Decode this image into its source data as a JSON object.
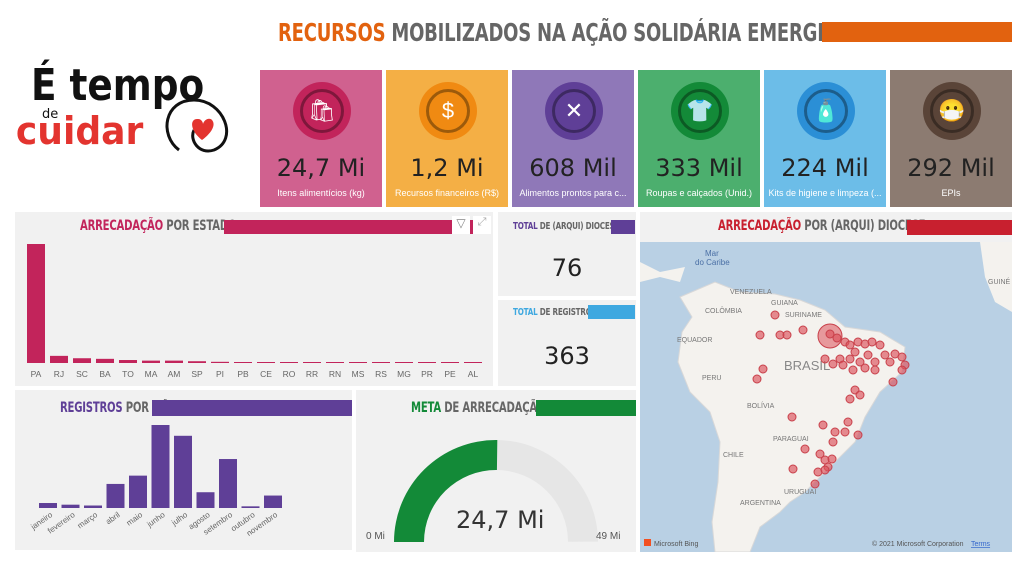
{
  "header": {
    "title_accent": "RECURSOS",
    "title_rest": " MOBILIZADOS NA AÇÃO SOLIDÁRIA EMERGENCIAL",
    "accent_color": "#e2620f"
  },
  "logo": {
    "line1": "É tempo",
    "line2": "de",
    "line3": "cuidar"
  },
  "cards": [
    {
      "value": "24,7 Mi",
      "label": "Itens alimentícios (kg)",
      "icon": "grocery-bag-icon",
      "bg": "#d0618f",
      "circle": "#c2245b"
    },
    {
      "value": "1,2 Mi",
      "label": "Recursos financeiros (R$)",
      "icon": "money-bag-icon",
      "bg": "#f4af45",
      "circle": "#f08a12"
    },
    {
      "value": "608 Mil",
      "label": "Alimentos prontos para c...",
      "icon": "fork-knife-icon",
      "bg": "#8f78b8",
      "circle": "#5f3f97"
    },
    {
      "value": "333 Mil",
      "label": "Roupas e calçados (Unid.)",
      "icon": "shirt-icon",
      "bg": "#4caf6e",
      "circle": "#138a38"
    },
    {
      "value": "224 Mil",
      "label": "Kits de higiene e limpeza (...",
      "icon": "soap-bottle-icon",
      "bg": "#6cbde8",
      "circle": "#2b8fd6"
    },
    {
      "value": "292 Mil",
      "label": "EPIs",
      "icon": "face-mask-icon",
      "bg": "#8c7b71",
      "circle": "#5a4438"
    }
  ],
  "totals": {
    "dioceses": {
      "accent": "TOTAL",
      "rest": " DE (ARQUI) DIOCESES",
      "value": "76",
      "color": "#5f3f97"
    },
    "registros": {
      "accent": "TOTAL",
      "rest": " DE REGISTROS",
      "value": "363",
      "color": "#3ea8e0"
    }
  },
  "map": {
    "title_accent": "ARRECADAÇÃO",
    "title_rest": " POR (ARQUI) DIOCESE",
    "color": "#c8202f",
    "labels": {
      "mar": "Mar",
      "caribe": "do Caribe",
      "venezuela": "VENEZUELA",
      "colombia": "COLÔMBIA",
      "guiana": "GUIANA",
      "suriname": "SURINAME",
      "equador": "EQUADOR",
      "peru": "PERU",
      "brasil": "BRASIL",
      "bolivia": "BOLÍVIA",
      "paraguai": "PARAGUAI",
      "chile": "CHILE",
      "uruguai": "URUGUAI",
      "argentina": "ARGENTINA",
      "guine": "GUINÉ"
    },
    "bing": "Microsoft Bing",
    "copyright": "© 2021 Microsoft Corporation",
    "terms": "Terms"
  },
  "chart_data": [
    {
      "type": "bar",
      "title_accent": "ARRECADAÇÃO",
      "title_rest": " POR ESTADO",
      "color": "#c2245b",
      "categories": [
        "PA",
        "RJ",
        "SC",
        "BA",
        "TO",
        "MA",
        "AM",
        "SP",
        "PI",
        "PB",
        "CE",
        "RO",
        "RR",
        "RN",
        "MS",
        "RS",
        "MG",
        "PR",
        "PE",
        "AL"
      ],
      "values": [
        100,
        6,
        4,
        3.5,
        2.5,
        2,
        2,
        1.5,
        1,
        0.5,
        0.5,
        0.5,
        0.5,
        0.5,
        0.5,
        0.5,
        0.5,
        0.5,
        0.5,
        0.5
      ]
    },
    {
      "type": "bar",
      "title_accent": "REGISTROS",
      "title_rest": " POR MÊS",
      "color": "#5f3f97",
      "categories": [
        "janeiro",
        "fevereiro",
        "março",
        "abril",
        "maio",
        "junho",
        "julho",
        "agosto",
        "setembro",
        "outubro",
        "novembro"
      ],
      "values": [
        6,
        4,
        3,
        29,
        39,
        100,
        87,
        19,
        59,
        2,
        15
      ]
    },
    {
      "type": "gauge",
      "title_accent": "META",
      "title_rest": " DE ARRECADAÇÃO",
      "color": "#138a38",
      "value": 24.7,
      "min": 0,
      "max": 49,
      "value_label": "24,7 Mi",
      "min_label": "0 Mi",
      "max_label": "49 Mi"
    }
  ]
}
